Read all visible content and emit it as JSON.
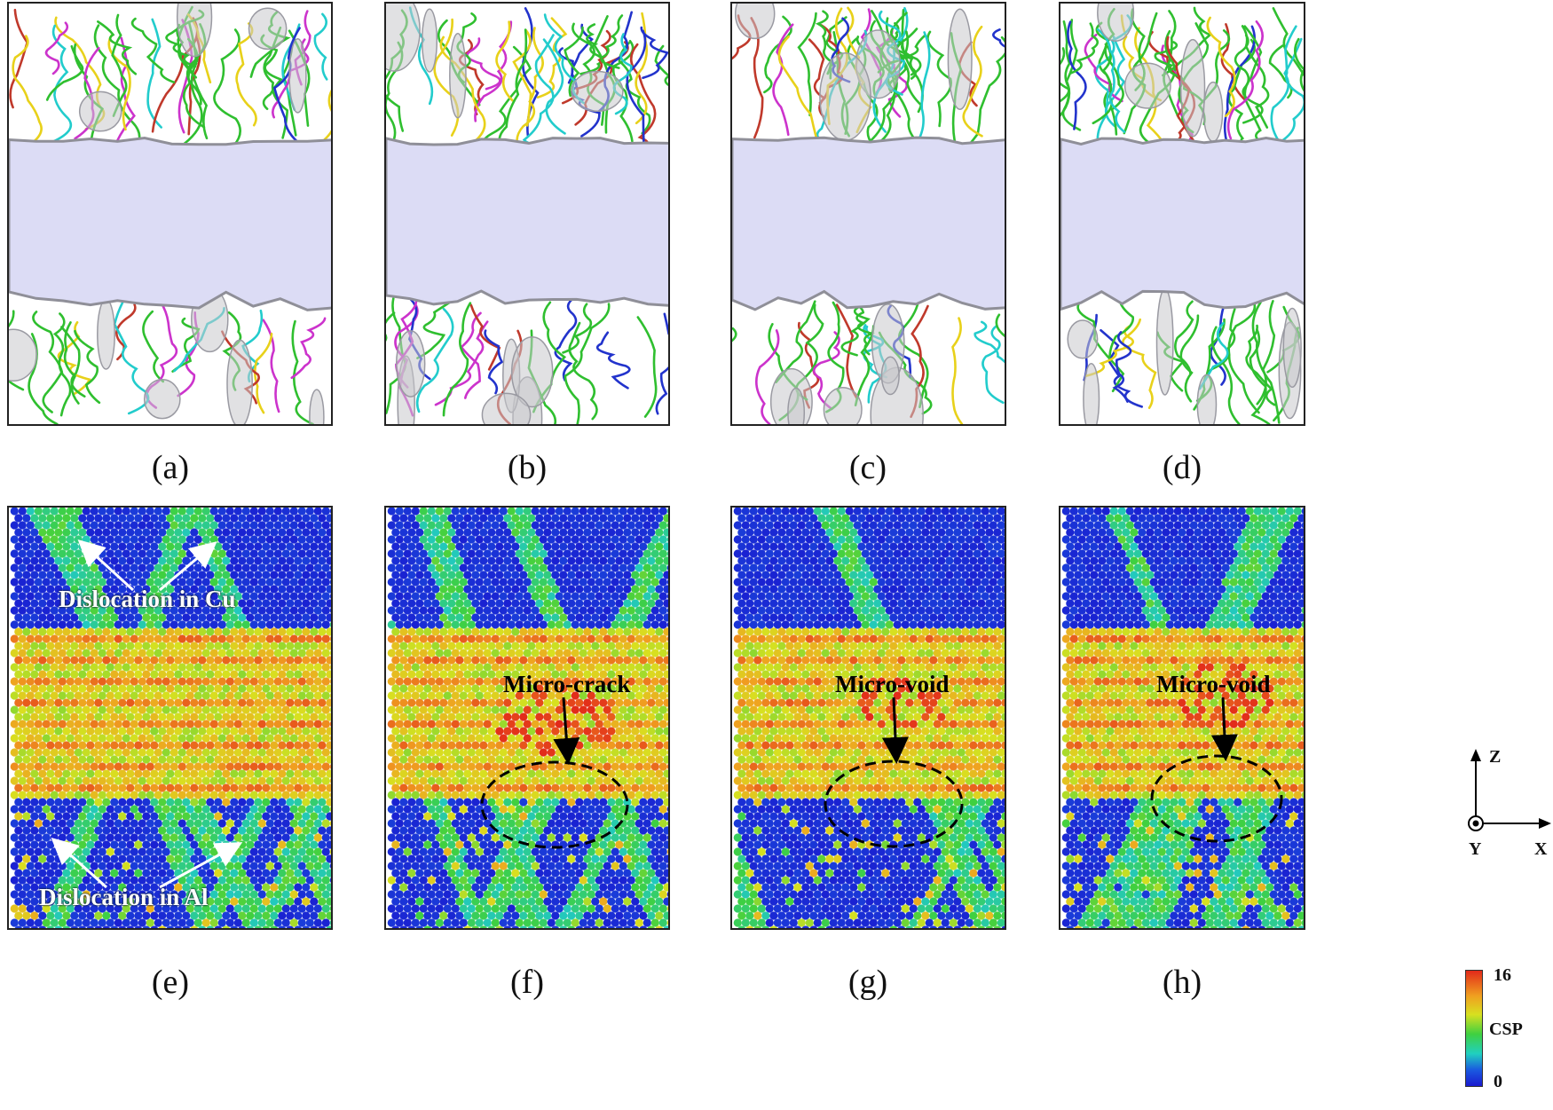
{
  "figure": {
    "top_row_captions": [
      "(a)",
      "(b)",
      "(c)",
      "(d)"
    ],
    "bottom_row_captions": [
      "(e)",
      "(f)",
      "(g)",
      "(h)"
    ],
    "callouts": {
      "e_cu": "Dislocation in Cu",
      "e_al": "Dislocation in Al",
      "f": "Micro-crack",
      "g": "Micro-void",
      "h": "Micro-void"
    },
    "axes": {
      "z": "Z",
      "x": "X",
      "y": "Y"
    },
    "colorbar": {
      "title": "CSP",
      "max": "16",
      "min": "0"
    }
  },
  "colors": {
    "dislocation_green": "#2fbf2f",
    "dislocation_red": "#c0392b",
    "dislocation_magenta": "#cc33cc",
    "dislocation_yellow": "#e8d11a",
    "dislocation_blue": "#2233cc",
    "dislocation_cyan": "#22cccc",
    "interface_lavender": "#dcdcf5",
    "surface_gray": "#c8c8cc",
    "csp_low": "#1a2fd8",
    "csp_mid": "#2fd06a",
    "csp_high": "#e22a1a"
  }
}
